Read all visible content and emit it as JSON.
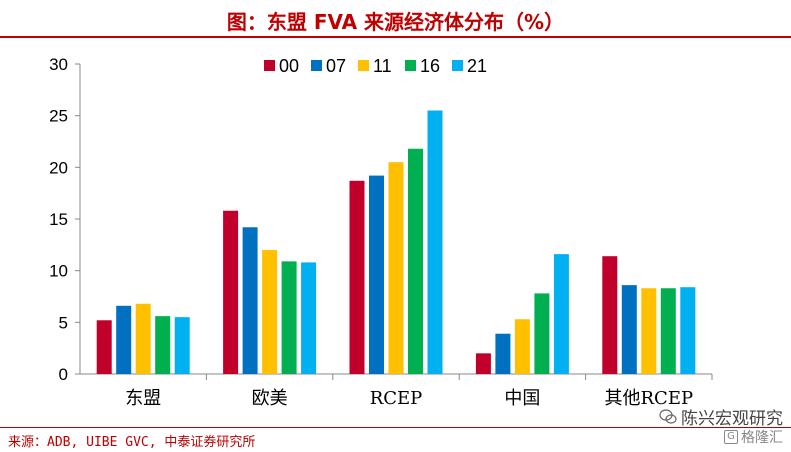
{
  "title": "图：东盟 FVA 来源经济体分布（%）",
  "source": "来源：ADB, UIBE GVC, 中泰证券研究所",
  "watermark": {
    "main": "陈兴宏观研究",
    "sub": "格隆汇",
    "wechat_icon": "wechat-icon",
    "gelonghui_icon": "gelonghui-icon"
  },
  "colors": {
    "title": "#c00000",
    "series": [
      "#c0002b",
      "#0070c0",
      "#ffc000",
      "#00b050",
      "#00b0f0"
    ]
  },
  "chart_data": {
    "type": "bar",
    "categories": [
      "东盟",
      "欧美",
      "RCEP",
      "中国",
      "其他RCEP"
    ],
    "series": [
      {
        "name": "00",
        "values": [
          5.2,
          15.8,
          18.7,
          2.0,
          11.4
        ]
      },
      {
        "name": "07",
        "values": [
          6.6,
          14.2,
          19.2,
          3.9,
          8.6
        ]
      },
      {
        "name": "11",
        "values": [
          6.8,
          12.0,
          20.5,
          5.3,
          8.3
        ]
      },
      {
        "name": "16",
        "values": [
          5.6,
          10.9,
          21.8,
          7.8,
          8.3
        ]
      },
      {
        "name": "21",
        "values": [
          5.5,
          10.8,
          25.5,
          11.6,
          8.4
        ]
      }
    ],
    "yticks": [
      "0",
      "5",
      "10",
      "15",
      "20",
      "25",
      "30"
    ],
    "ylim": [
      0,
      30
    ],
    "xlabel": "",
    "ylabel": "",
    "grid": false,
    "legend": "top-center"
  }
}
